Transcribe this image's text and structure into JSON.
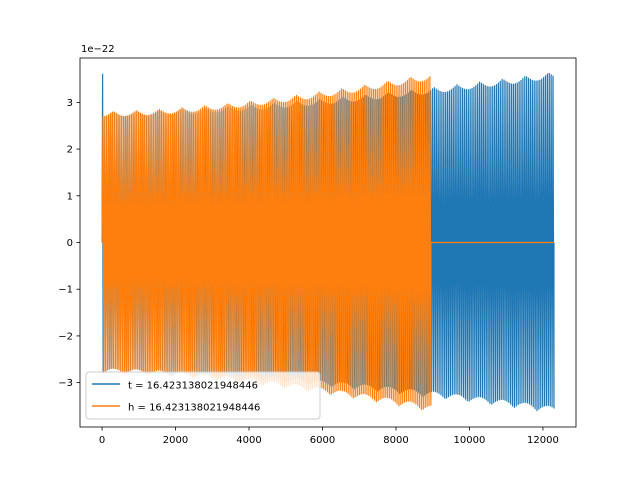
{
  "chart_data": {
    "type": "line",
    "title": "",
    "xlabel": "",
    "ylabel": "",
    "y_scale_label": "1e−22",
    "xlim": [
      -600,
      12900
    ],
    "ylim": [
      -3.95,
      3.95
    ],
    "x_ticks": [
      0,
      2000,
      4000,
      6000,
      8000,
      10000,
      12000
    ],
    "x_tick_labels": [
      "0",
      "2000",
      "4000",
      "6000",
      "8000",
      "10000",
      "12000"
    ],
    "y_ticks": [
      -3,
      -2,
      -1,
      0,
      1,
      2,
      3
    ],
    "y_tick_labels": [
      "−3",
      "−2",
      "−1",
      "0",
      "1",
      "2",
      "3"
    ],
    "grid": false,
    "legend_position": "lower-left",
    "series": [
      {
        "name": "t = 16.423138021948446",
        "color": "#1f77b4",
        "x_range": [
          0,
          12300
        ],
        "initial_spike": 3.6,
        "amplitude_start": 2.8,
        "amplitude_end": 3.65,
        "cycles": 240
      },
      {
        "name": "h = 16.423138021948446",
        "color": "#ff7f0e",
        "x_range": [
          0,
          8950
        ],
        "amplitude_start": 2.8,
        "amplitude_end": 3.62,
        "cycles": 175,
        "flat_after": [
          8950,
          12300
        ],
        "flat_value": 0
      }
    ]
  }
}
